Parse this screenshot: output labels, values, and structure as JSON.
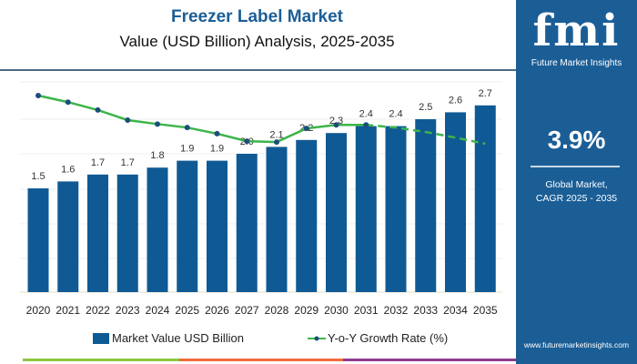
{
  "header": {
    "title": "Freezer Label Market",
    "subtitle": "Value (USD Billion) Analysis, 2025-2035"
  },
  "sidebar": {
    "logo_text": "fmi",
    "logo_subtitle": "Future Market Insights",
    "cagr_value": "3.9%",
    "cagr_label_line1": "Global Market,",
    "cagr_label_line2": "CAGR 2025 - 2035",
    "url": "www.futuremarketinsights.com"
  },
  "colors": {
    "bar": "#0f5a94",
    "line": "#3cb54a",
    "marker": "#1b4f7a",
    "sidebar": "#1b5e96",
    "strip": [
      "#8cc63f",
      "#f26b3a",
      "#8e3b8e"
    ]
  },
  "chart_data": {
    "type": "bar",
    "title": "Freezer Label Market",
    "subtitle": "Value (USD Billion) Analysis, 2025-2035",
    "categories": [
      "2020",
      "2021",
      "2022",
      "2023",
      "2024",
      "2025",
      "2026",
      "2027",
      "2028",
      "2029",
      "2030",
      "2031",
      "2032",
      "2033",
      "2034",
      "2035"
    ],
    "series": [
      {
        "name": "Market Value USD Billion",
        "type": "bar",
        "values": [
          1.5,
          1.6,
          1.7,
          1.7,
          1.8,
          1.9,
          1.9,
          2.0,
          2.1,
          2.2,
          2.3,
          2.4,
          2.4,
          2.5,
          2.6,
          2.7
        ],
        "labels": [
          "1.5",
          "1.6",
          "1.7",
          "1.7",
          "1.8",
          "1.9",
          "1.9",
          "2.0",
          "2.1",
          "2.2",
          "2.3",
          "2.4",
          "2.4",
          "2.5",
          "2.6",
          "2.7"
        ]
      },
      {
        "name": "Y-o-Y Growth Rate (%)",
        "type": "line",
        "values": [
          5.0,
          4.85,
          4.67,
          4.44,
          4.35,
          4.27,
          4.13,
          3.96,
          3.94,
          4.25,
          4.33,
          4.33,
          4.27,
          4.17,
          4.04,
          3.9
        ],
        "dashed_from": "2031"
      }
    ],
    "ylim": [
      0,
      3.0
    ],
    "grid": true,
    "legend": "bottom"
  }
}
